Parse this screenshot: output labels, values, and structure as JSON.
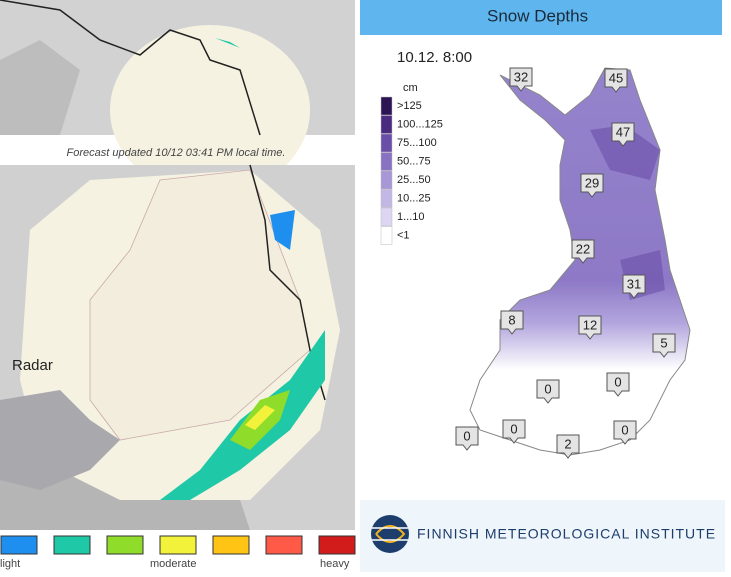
{
  "radar": {
    "caption": "Forecast updated 10/12 03:41 PM local time.",
    "label": "Radar",
    "scale": {
      "colors": [
        "#1f8fef",
        "#1fc8a6",
        "#8fdc2a",
        "#f2f23a",
        "#ffc414",
        "#ff5a48",
        "#d21c1c"
      ],
      "labels": [
        "light",
        "moderate",
        "heavy"
      ]
    }
  },
  "snow": {
    "title": "Snow Depths",
    "time": "10.12. 8:00",
    "unit": "cm",
    "legend": [
      {
        "label": ">125",
        "color": "#2d1454"
      },
      {
        "label": "100...125",
        "color": "#4a2b80"
      },
      {
        "label": "75...100",
        "color": "#6a4fa8"
      },
      {
        "label": "50...75",
        "color": "#8a72c2"
      },
      {
        "label": "25...50",
        "color": "#a797d6"
      },
      {
        "label": "10...25",
        "color": "#c3b7e6"
      },
      {
        "label": "1...10",
        "color": "#ddd6f3"
      },
      {
        "label": "<1",
        "color": "#ffffff"
      }
    ],
    "stations": [
      "32",
      "45",
      "47",
      "29",
      "22",
      "31",
      "8",
      "12",
      "5",
      "0",
      "0",
      "0",
      "0",
      "2",
      "0"
    ]
  },
  "footer": {
    "institute": "FINNISH METEOROLOGICAL INSTITUTE"
  }
}
